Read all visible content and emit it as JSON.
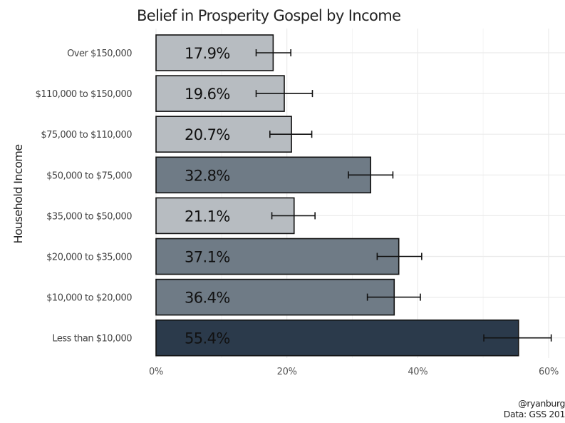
{
  "chart_data": {
    "type": "bar",
    "orientation": "horizontal",
    "title": "Belief in Prosperity Gospel by Income",
    "ylabel": "Household Income",
    "xlabel": "",
    "categories": [
      "Over $150,000",
      "$110,000 to $150,000",
      "$75,000 to $110,000",
      "$50,000 to $75,000",
      "$35,000 to $50,000",
      "$20,000 to $35,000",
      "$10,000 to $20,000",
      "Less than $10,000"
    ],
    "values": [
      0.179,
      0.196,
      0.207,
      0.328,
      0.211,
      0.371,
      0.364,
      0.554
    ],
    "labels": [
      "17.9%",
      "19.6%",
      "20.7%",
      "32.8%",
      "21.1%",
      "37.1%",
      "36.4%",
      "55.4%"
    ],
    "error_low": [
      0.153,
      0.153,
      0.174,
      0.294,
      0.177,
      0.338,
      0.323,
      0.501
    ],
    "error_high": [
      0.206,
      0.239,
      0.238,
      0.362,
      0.243,
      0.406,
      0.404,
      0.604
    ],
    "bar_colors": [
      "#b7bcc1",
      "#b7bcc1",
      "#b7bcc1",
      "#6f7b86",
      "#b7bcc1",
      "#6f7b86",
      "#6f7b86",
      "#2b3a4b"
    ],
    "xlim": [
      0,
      0.6
    ],
    "x_ticks": [
      0,
      0.2,
      0.4,
      0.6
    ],
    "x_tick_labels": [
      "0%",
      "20%",
      "40%",
      "60%"
    ],
    "grid": true,
    "legend": "none"
  },
  "caption": {
    "line1": "@ryanburg",
    "line2": "Data: GSS 201"
  }
}
